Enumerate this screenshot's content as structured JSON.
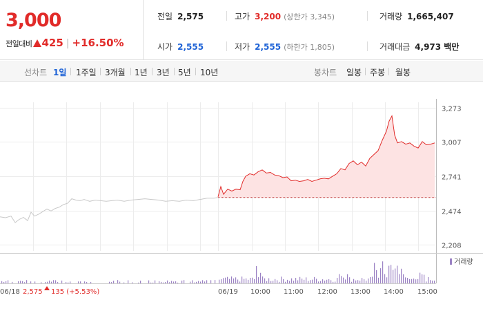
{
  "summary": {
    "current_price": "3,000",
    "change_label": "전일대비",
    "change_amount": "425",
    "change_percent": "+16.50%",
    "prev_close_label": "전일",
    "prev_close": "2,575",
    "high_label": "고가",
    "high": "3,200",
    "upper_limit": "(상한가 3,345)",
    "volume_label": "거래량",
    "volume": "1,665,407",
    "open_label": "시가",
    "open": "2,555",
    "low_label": "저가",
    "low": "2,555",
    "lower_limit": "(하한가 1,805)",
    "trade_value_label": "거래대금",
    "trade_value": "4,973 백만"
  },
  "line_chart_tabs": {
    "label": "선차트",
    "items": [
      "1일",
      "1주일",
      "3개월",
      "1년",
      "3년",
      "5년",
      "10년"
    ],
    "active": "1일"
  },
  "candle_chart_tabs": {
    "label": "봉차트",
    "items": [
      "일봉",
      "주봉",
      "월봉"
    ]
  },
  "colors": {
    "up": "#e12b29",
    "down": "#1d62d6",
    "prev_line": "#c8c8c8",
    "fill": "#fde3e3",
    "volume": "#9b82c4"
  },
  "chart_data": {
    "type": "line",
    "y_ticks": [
      "3,273",
      "3,007",
      "2,741",
      "2,474",
      "2,208"
    ],
    "ylim": [
      2208,
      3273
    ],
    "baseline": 2575,
    "prev_day": {
      "date_label": "06/18",
      "close_label": "2,575",
      "change_label": "135 (+5.53%)",
      "x": [
        0,
        8,
        16,
        22,
        28,
        34,
        40,
        45,
        50,
        56,
        62,
        68,
        74,
        80,
        86,
        92,
        98,
        104,
        110,
        116,
        122,
        130,
        138,
        146,
        154,
        162,
        170,
        180,
        190,
        200,
        210,
        220,
        230,
        240,
        250,
        260,
        270,
        280,
        290,
        300,
        310,
        316
      ],
      "values": [
        2425,
        2418,
        2430,
        2380,
        2405,
        2420,
        2395,
        2460,
        2430,
        2445,
        2465,
        2485,
        2470,
        2490,
        2500,
        2520,
        2530,
        2565,
        2555,
        2550,
        2560,
        2545,
        2555,
        2550,
        2545,
        2550,
        2555,
        2545,
        2555,
        2560,
        2565,
        2560,
        2555,
        2545,
        2550,
        2545,
        2555,
        2550,
        2560,
        2570,
        2570,
        2575
      ]
    },
    "today": {
      "date_label": "06/19",
      "x_ticks": [
        "10:00",
        "11:00",
        "12:00",
        "13:00",
        "14:00",
        "15:00"
      ],
      "x": [
        316,
        320,
        324,
        330,
        336,
        342,
        348,
        352,
        356,
        362,
        368,
        374,
        380,
        386,
        392,
        398,
        404,
        410,
        416,
        422,
        428,
        434,
        440,
        446,
        452,
        458,
        464,
        470,
        476,
        482,
        488,
        494,
        500,
        506,
        512,
        518,
        524,
        530,
        536,
        542,
        548,
        554,
        560,
        564,
        568,
        572,
        576,
        582,
        588,
        594,
        600,
        606,
        612,
        618,
        624,
        630
      ],
      "values": [
        2580,
        2660,
        2600,
        2640,
        2625,
        2640,
        2635,
        2700,
        2740,
        2760,
        2750,
        2775,
        2790,
        2765,
        2770,
        2750,
        2745,
        2730,
        2735,
        2705,
        2710,
        2700,
        2705,
        2715,
        2700,
        2710,
        2720,
        2725,
        2720,
        2740,
        2760,
        2800,
        2790,
        2840,
        2860,
        2830,
        2850,
        2820,
        2880,
        2910,
        2940,
        3020,
        3090,
        3170,
        3210,
        3060,
        3000,
        3010,
        2990,
        3000,
        2975,
        2960,
        3010,
        2985,
        2990,
        3000
      ]
    },
    "volume_label": "거래량"
  }
}
